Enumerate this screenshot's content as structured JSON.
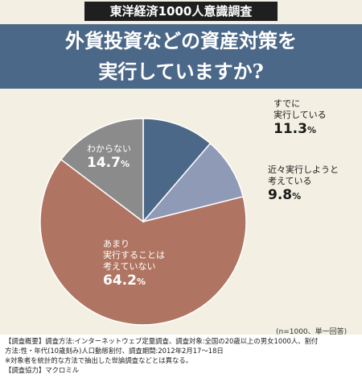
{
  "header": {
    "survey_tag": "東洋経済1000人意識調査",
    "title_line1": "外貨投資などの資産対策を",
    "title_line2": "実行していますか?"
  },
  "chart_data": {
    "type": "pie",
    "title": "外貨投資などの資産対策を実行していますか?",
    "unit": "%",
    "slices": [
      {
        "label_lines": [
          "すでに",
          "実行している"
        ],
        "value": 11.3,
        "color": "#4c6888"
      },
      {
        "label_lines": [
          "近々実行しようと",
          "考えている"
        ],
        "value": 9.8,
        "color": "#8e9ab6"
      },
      {
        "label_lines": [
          "あまり",
          "実行することは",
          "考えていない"
        ],
        "value": 64.2,
        "color": "#b07562"
      },
      {
        "label_lines": [
          "わからない"
        ],
        "value": 14.7,
        "color": "#8b8b8b"
      }
    ]
  },
  "value_texts": [
    "11.3",
    "9.8",
    "64.2",
    "14.7"
  ],
  "sample_note": "(n=1000、単一回答)",
  "notes": {
    "line1": "【調査概要】調査方法:インターネットウェブ定量調査、調査対象:全国の20歳以上の男女1000人、割付",
    "line2": "方法:性・年代(10歳刻み)人口動態割付、調査期間:2012年2月17～18日",
    "line3": "※対象者を統計的な方法で抽出した世論調査などとは異なる。",
    "line4": "【調査協力】マクロミル"
  }
}
